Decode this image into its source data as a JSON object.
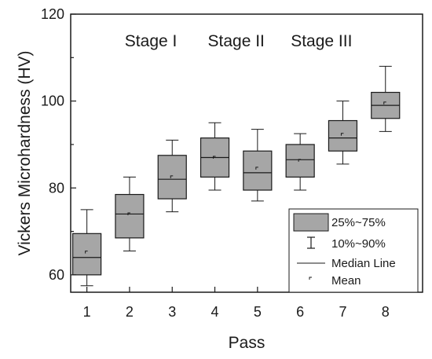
{
  "chart_data": {
    "type": "box",
    "xlabel": "Pass",
    "ylabel": "Vickers Microhardness (HV)",
    "categories": [
      "1",
      "2",
      "3",
      "4",
      "5",
      "6",
      "7",
      "8"
    ],
    "ylim": [
      56,
      120
    ],
    "yticks": [
      60,
      80,
      100,
      120
    ],
    "boxes": [
      {
        "p10": 57.5,
        "q1": 60.0,
        "median": 64.0,
        "q3": 69.5,
        "p90": 75.0,
        "mean": 65.2
      },
      {
        "p10": 65.5,
        "q1": 68.5,
        "median": 74.0,
        "q3": 78.5,
        "p90": 82.5,
        "mean": 74.0
      },
      {
        "p10": 74.5,
        "q1": 77.5,
        "median": 82.0,
        "q3": 87.5,
        "p90": 91.0,
        "mean": 82.5
      },
      {
        "p10": 79.5,
        "q1": 82.5,
        "median": 87.0,
        "q3": 91.5,
        "p90": 95.0,
        "mean": 87.0
      },
      {
        "p10": 77.0,
        "q1": 79.5,
        "median": 83.5,
        "q3": 88.5,
        "p90": 93.5,
        "mean": 84.5
      },
      {
        "p10": 79.5,
        "q1": 82.5,
        "median": 86.5,
        "q3": 90.0,
        "p90": 92.5,
        "mean": 86.3
      },
      {
        "p10": 85.5,
        "q1": 88.5,
        "median": 91.5,
        "q3": 95.5,
        "p90": 100.0,
        "mean": 92.3
      },
      {
        "p10": 93.0,
        "q1": 96.0,
        "median": 99.0,
        "q3": 102.0,
        "p90": 108.0,
        "mean": 99.5
      }
    ],
    "annotations": [
      {
        "text": "Stage I",
        "x": 2.5,
        "y": 114
      },
      {
        "text": "Stage II",
        "x": 4.5,
        "y": 114
      },
      {
        "text": "Stage III",
        "x": 6.5,
        "y": 114
      }
    ],
    "legend": {
      "position": "bottom-right",
      "items": [
        "25%~75%",
        "10%~90%",
        "Median Line",
        "Mean"
      ]
    },
    "grid": false,
    "colors": {
      "box_fill": "#a6a6a6",
      "stroke": "#1a1a1a"
    }
  }
}
